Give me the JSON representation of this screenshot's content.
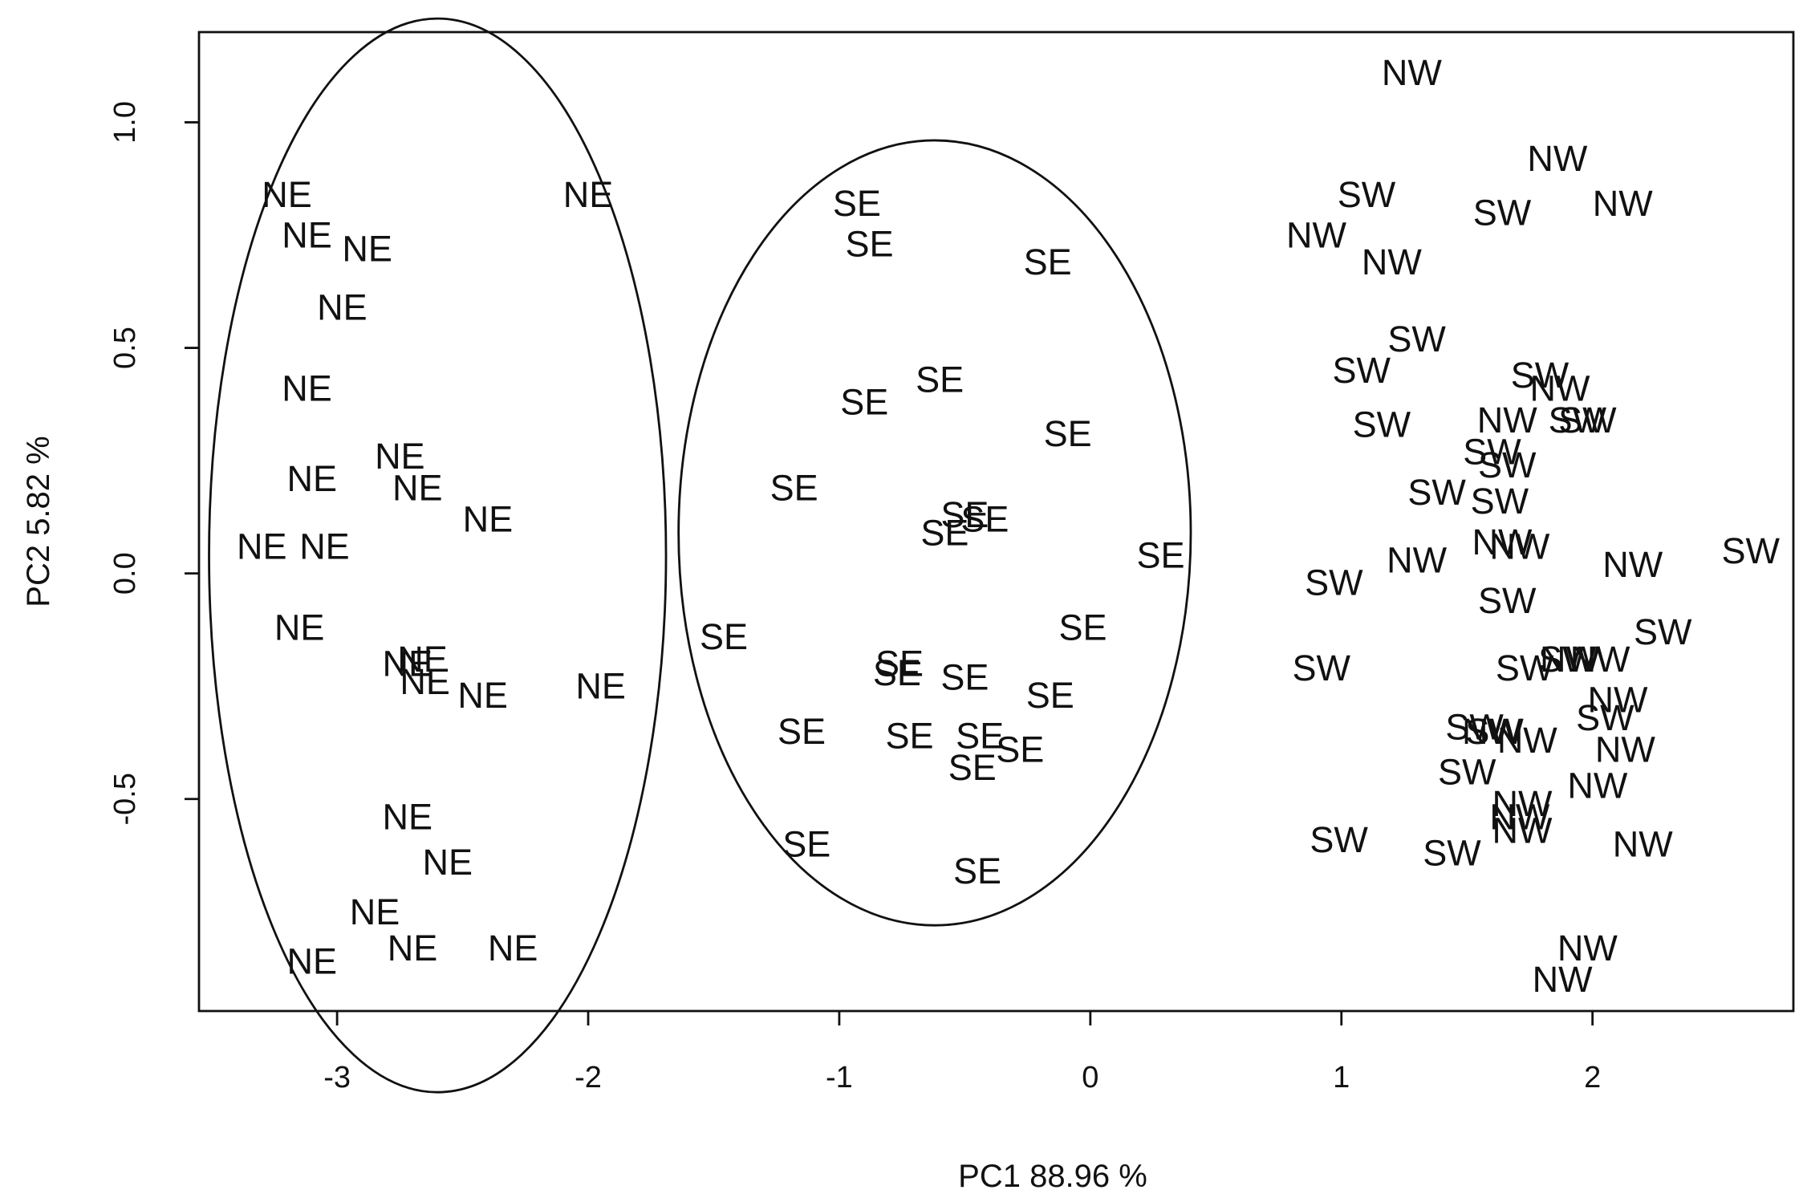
{
  "chart_data": {
    "type": "scatter",
    "xlabel": "PC1    88.96 %",
    "ylabel": "PC2    5.82 %",
    "xlim": [
      -3.55,
      2.8
    ],
    "ylim": [
      -0.97,
      1.2
    ],
    "xticks": [
      -3,
      -2,
      -1,
      0,
      1,
      2
    ],
    "xtick_labels": [
      "-3",
      "-2",
      "-1",
      "0",
      "1",
      "2"
    ],
    "yticks": [
      -0.5,
      0.0,
      0.5,
      1.0
    ],
    "ytick_labels": [
      "-0.5",
      "0.0",
      "0.5",
      "1.0"
    ],
    "marker": "text label",
    "ellipses": [
      {
        "group": "NE",
        "center": [
          -2.6,
          0.04
        ],
        "semi_axis_x": 0.91,
        "semi_axis_y": 1.19
      },
      {
        "group": "SE",
        "center": [
          -0.62,
          0.09
        ],
        "semi_axis_x": 1.02,
        "semi_axis_y": 0.87
      }
    ],
    "series": [
      {
        "name": "NE",
        "points": [
          [
            -3.2,
            0.84
          ],
          [
            -2.0,
            0.84
          ],
          [
            -3.12,
            0.75
          ],
          [
            -2.88,
            0.72
          ],
          [
            -2.98,
            0.59
          ],
          [
            -3.12,
            0.41
          ],
          [
            -2.75,
            0.26
          ],
          [
            -3.1,
            0.21
          ],
          [
            -2.68,
            0.19
          ],
          [
            -2.4,
            0.12
          ],
          [
            -3.3,
            0.06
          ],
          [
            -3.05,
            0.06
          ],
          [
            -3.15,
            -0.12
          ],
          [
            -2.72,
            -0.2
          ],
          [
            -2.66,
            -0.19
          ],
          [
            -2.65,
            -0.24
          ],
          [
            -2.42,
            -0.27
          ],
          [
            -1.95,
            -0.25
          ],
          [
            -2.72,
            -0.54
          ],
          [
            -2.56,
            -0.64
          ],
          [
            -2.85,
            -0.75
          ],
          [
            -2.7,
            -0.83
          ],
          [
            -2.3,
            -0.83
          ],
          [
            -3.1,
            -0.86
          ]
        ]
      },
      {
        "name": "SE",
        "points": [
          [
            -0.93,
            0.82
          ],
          [
            -0.88,
            0.73
          ],
          [
            -0.17,
            0.69
          ],
          [
            -0.6,
            0.43
          ],
          [
            -0.9,
            0.38
          ],
          [
            -0.09,
            0.31
          ],
          [
            -1.18,
            0.19
          ],
          [
            -0.5,
            0.13
          ],
          [
            -0.42,
            0.12
          ],
          [
            -0.58,
            0.09
          ],
          [
            0.28,
            0.04
          ],
          [
            -1.46,
            -0.14
          ],
          [
            -0.03,
            -0.12
          ],
          [
            -0.76,
            -0.2
          ],
          [
            -0.77,
            -0.22
          ],
          [
            -0.5,
            -0.23
          ],
          [
            -0.16,
            -0.27
          ],
          [
            -1.15,
            -0.35
          ],
          [
            -0.72,
            -0.36
          ],
          [
            -0.44,
            -0.36
          ],
          [
            -0.28,
            -0.39
          ],
          [
            -0.47,
            -0.43
          ],
          [
            -1.13,
            -0.6
          ],
          [
            -0.45,
            -0.66
          ]
        ]
      },
      {
        "name": "NW",
        "points": [
          [
            1.28,
            1.11
          ],
          [
            1.86,
            0.92
          ],
          [
            2.12,
            0.82
          ],
          [
            0.9,
            0.75
          ],
          [
            1.2,
            0.69
          ],
          [
            1.87,
            0.41
          ],
          [
            1.66,
            0.34
          ],
          [
            1.64,
            0.07
          ],
          [
            1.71,
            0.06
          ],
          [
            1.3,
            0.03
          ],
          [
            2.16,
            0.02
          ],
          [
            1.91,
            -0.19
          ],
          [
            2.03,
            -0.19
          ],
          [
            2.1,
            -0.28
          ],
          [
            1.6,
            -0.35
          ],
          [
            1.74,
            -0.37
          ],
          [
            2.13,
            -0.39
          ],
          [
            2.02,
            -0.47
          ],
          [
            1.72,
            -0.51
          ],
          [
            1.71,
            -0.54
          ],
          [
            1.72,
            -0.57
          ],
          [
            2.2,
            -0.6
          ],
          [
            1.98,
            -0.83
          ],
          [
            1.88,
            -0.9
          ]
        ]
      },
      {
        "name": "SW",
        "points": [
          [
            1.1,
            0.84
          ],
          [
            1.64,
            0.8
          ],
          [
            1.3,
            0.52
          ],
          [
            1.08,
            0.45
          ],
          [
            1.79,
            0.44
          ],
          [
            1.16,
            0.33
          ],
          [
            1.94,
            0.34
          ],
          [
            1.98,
            0.34
          ],
          [
            1.6,
            0.27
          ],
          [
            1.66,
            0.24
          ],
          [
            1.38,
            0.18
          ],
          [
            1.63,
            0.16
          ],
          [
            2.63,
            0.05
          ],
          [
            0.97,
            -0.02
          ],
          [
            1.66,
            -0.06
          ],
          [
            0.92,
            -0.21
          ],
          [
            1.73,
            -0.21
          ],
          [
            1.9,
            -0.19
          ],
          [
            2.28,
            -0.13
          ],
          [
            1.53,
            -0.34
          ],
          [
            1.61,
            -0.35
          ],
          [
            2.05,
            -0.32
          ],
          [
            1.5,
            -0.44
          ],
          [
            0.99,
            -0.59
          ],
          [
            1.44,
            -0.62
          ]
        ]
      }
    ]
  }
}
